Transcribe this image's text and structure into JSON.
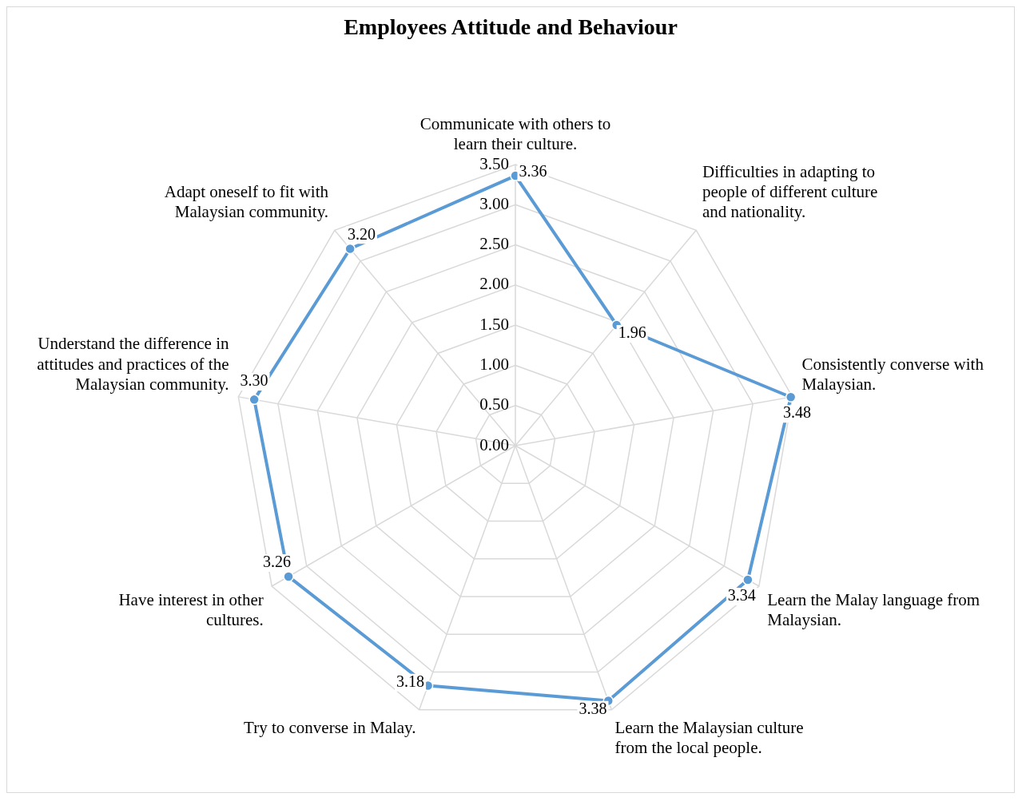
{
  "chart_data": {
    "type": "radar",
    "title": "Employees Attitude and Behaviour",
    "categories": [
      "Communicate with others to learn their culture.",
      "Difficulties in adapting to people of different culture and nationality.",
      "Consistently converse with Malaysian.",
      "Learn the Malay language from Malaysian.",
      "Learn the Malaysian culture from the local people.",
      "Try to converse in Malay.",
      "Have interest in other cultures.",
      "Understand the difference in attitudes and practices of the Malaysian community.",
      "Adapt oneself to fit with Malaysian community."
    ],
    "series": [
      {
        "color": "#5b9bd5",
        "values": [
          3.36,
          1.96,
          3.48,
          3.34,
          3.38,
          3.18,
          3.26,
          3.3,
          3.2
        ],
        "value_labels": [
          "3.36",
          "1.96",
          "3.48",
          "3.34",
          "3.38",
          "3.18",
          "3.26",
          "3.30",
          "3.20"
        ]
      }
    ],
    "ylim": [
      0,
      3.5
    ],
    "yticks": [
      {
        "value": 0,
        "label": "0.00"
      },
      {
        "value": 0.5,
        "label": "0.50"
      },
      {
        "value": 1,
        "label": "1.00"
      },
      {
        "value": 1.5,
        "label": "1.50"
      },
      {
        "value": 2,
        "label": "2.00"
      },
      {
        "value": 2.5,
        "label": "2.50"
      },
      {
        "value": 3,
        "label": "3.00"
      },
      {
        "value": 3.5,
        "label": "3.50"
      }
    ],
    "grid": true,
    "legend": false,
    "marker": "circle",
    "line_style": "solid"
  }
}
